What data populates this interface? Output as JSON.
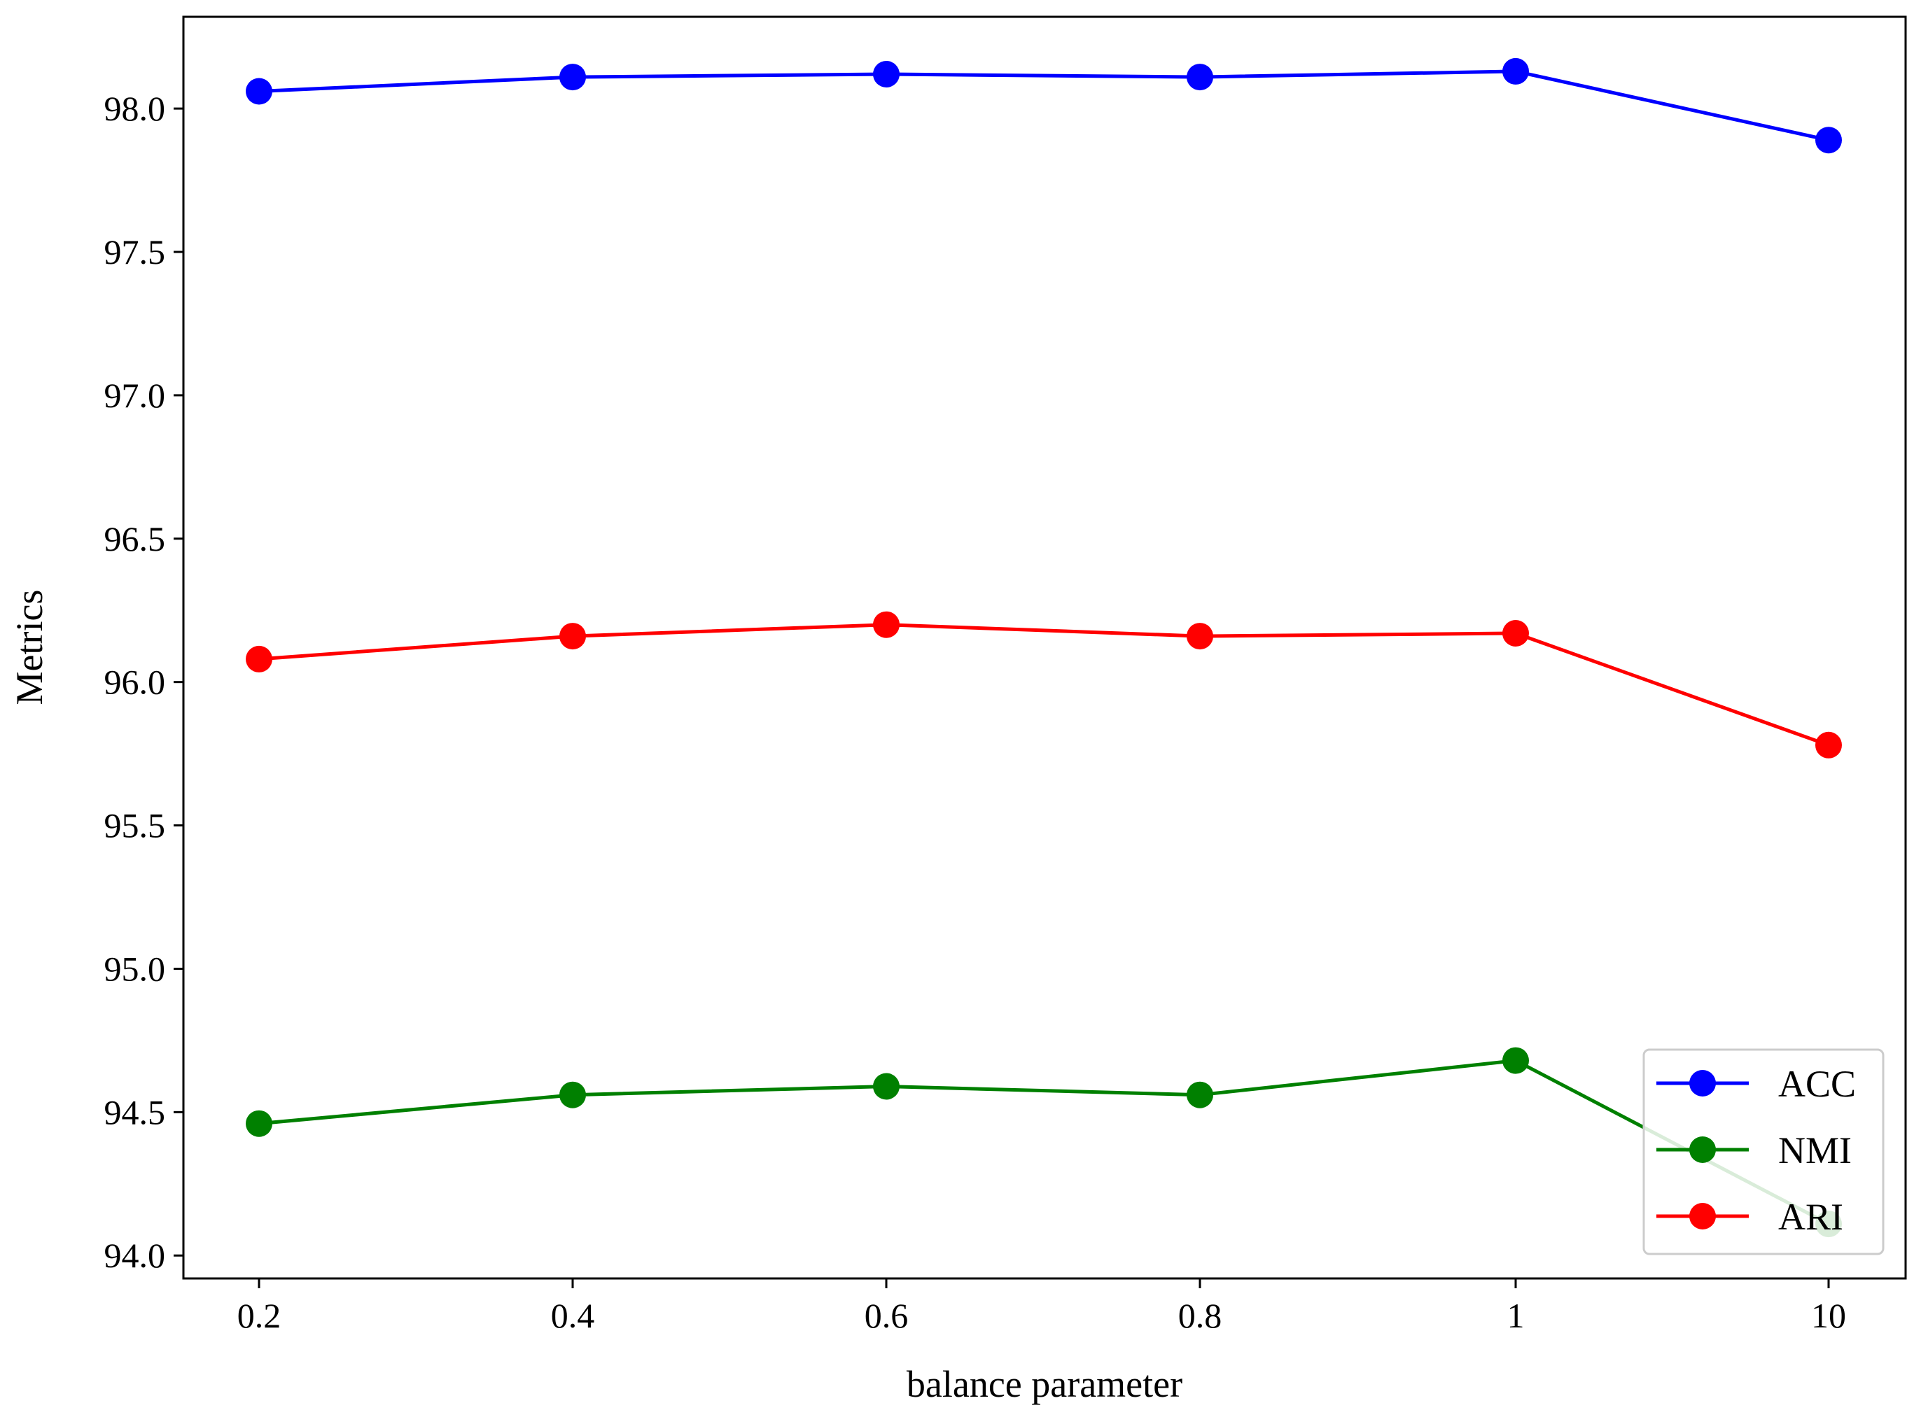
{
  "chart_data": {
    "type": "line",
    "title": "",
    "xlabel": "balance parameter",
    "ylabel": "Metrics",
    "categories": [
      "0.2",
      "0.4",
      "0.6",
      "0.8",
      "1",
      "10"
    ],
    "ylim": [
      93.92,
      98.32
    ],
    "yticks": [
      "94.0",
      "94.5",
      "95.0",
      "95.5",
      "96.0",
      "96.5",
      "97.0",
      "97.5",
      "98.0"
    ],
    "grid": false,
    "legend_position": "bottom-right",
    "series": [
      {
        "name": "ACC",
        "color": "#0000ff",
        "values": [
          98.06,
          98.11,
          98.12,
          98.11,
          98.13,
          97.89
        ]
      },
      {
        "name": "NMI",
        "color": "#008000",
        "values": [
          94.46,
          94.56,
          94.59,
          94.56,
          94.68,
          94.11
        ]
      },
      {
        "name": "ARI",
        "color": "#ff0000",
        "values": [
          96.08,
          96.16,
          96.2,
          96.16,
          96.17,
          95.78
        ]
      }
    ]
  }
}
